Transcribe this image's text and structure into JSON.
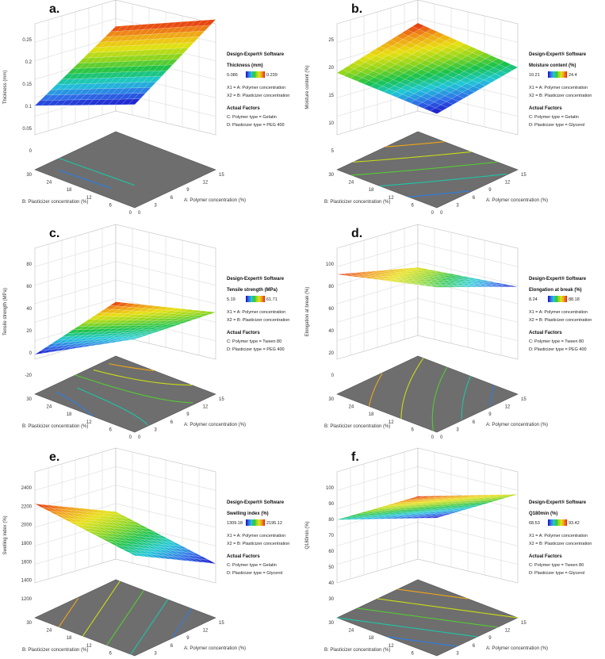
{
  "figure": {
    "software_label": "Design-Expert® Software",
    "x1_label": "X1 = A: Polymer concentration",
    "x2_label": "X2 = B: Plasticizer concentration",
    "actual_factors_label": "Actual Factors",
    "x_axis_label": "A: Polymer concentration (%)",
    "y_axis_label": "B: Plasticizer concentration (%)"
  },
  "colormap": [
    "#1a10c8",
    "#2f6fe8",
    "#1fc8d6",
    "#19c24a",
    "#8fd51c",
    "#e8e010",
    "#f09b16",
    "#e42a10"
  ],
  "chart_data": [
    {
      "panel": "a.",
      "type": "surface",
      "zlabel": "Thickness (mm)",
      "legend_title": "Thickness (mm)",
      "legend_min": "0.086",
      "legend_max": "0.239",
      "factor_c": "C: Polymer type = Gelatin",
      "factor_d": "D: Plasticizer type = PEG 400",
      "x_ticks": [
        "0",
        "3",
        "6",
        "9",
        "12",
        "15"
      ],
      "y_ticks": [
        "0",
        "6",
        "12",
        "18",
        "24",
        "30"
      ],
      "z_ticks": [
        "0",
        "0.05",
        "0.1",
        "0.15",
        "0.2",
        "0.25"
      ],
      "zlim": [
        0,
        0.25
      ],
      "corners": {
        "x0_y0": 0.086,
        "x15_y0": 0.239,
        "x0_y30": 0.095,
        "x15_y30": 0.235
      }
    },
    {
      "panel": "b.",
      "type": "surface",
      "zlabel": "Moisture content (%)",
      "legend_title": "Moisture content (%)",
      "legend_min": "10.21",
      "legend_max": "24.4",
      "factor_c": "C: Polymer type = Gelatin",
      "factor_d": "D: Plasticizer type = Glycerol",
      "x_ticks": [
        "0",
        "3",
        "6",
        "9",
        "12",
        "15"
      ],
      "y_ticks": [
        "0",
        "6",
        "12",
        "18",
        "24",
        "30"
      ],
      "z_ticks": [
        "5",
        "10",
        "15",
        "20",
        "25"
      ],
      "zlim": [
        5,
        25
      ],
      "corners": {
        "x0_y0": 10.21,
        "x15_y0": 15.5,
        "x0_y30": 18.5,
        "x15_y30": 24.4
      }
    },
    {
      "panel": "c.",
      "type": "surface",
      "zlabel": "Tensile strength (MPa)",
      "legend_title": "Tensile strength (MPa)",
      "legend_min": "5.19",
      "legend_max": "61.71",
      "factor_c": "C: Polymer type = Tween 80",
      "factor_d": "D: Plasticizer type = PEG 400",
      "x_ticks": [
        "0",
        "3",
        "6",
        "9",
        "12",
        "15"
      ],
      "y_ticks": [
        "0",
        "6",
        "12",
        "18",
        "24",
        "30"
      ],
      "z_ticks": [
        "-20",
        "0",
        "20",
        "40",
        "60",
        "80"
      ],
      "zlim": [
        -20,
        80
      ],
      "corners": {
        "x0_y0": 5.19,
        "x15_y0": 14,
        "x0_y30": -4,
        "x15_y30": 28
      }
    },
    {
      "panel": "d.",
      "type": "surface",
      "zlabel": "Elongation at break (%)",
      "legend_title": "Elongation at break (%)",
      "legend_min": "8.24",
      "legend_max": "88.18",
      "factor_c": "C: Polymer type = Tween 80",
      "factor_d": "D: Plasticizer type = PEG 400",
      "x_ticks": [
        "0",
        "3",
        "6",
        "9",
        "12",
        "15"
      ],
      "y_ticks": [
        "0",
        "6",
        "12",
        "18",
        "24",
        "30"
      ],
      "z_ticks": [
        "0",
        "20",
        "40",
        "60",
        "80",
        "100"
      ],
      "zlim": [
        0,
        100
      ],
      "corners": {
        "x0_y0": 72,
        "x15_y0": 57,
        "x0_y30": 88.18,
        "x15_y30": 79
      }
    },
    {
      "panel": "e.",
      "type": "surface",
      "zlabel": "Swelling index (%)",
      "legend_title": "Swelling index (%)",
      "legend_min": "1309.18",
      "legend_max": "2195.12",
      "factor_c": "C: Polymer type = Gelatin",
      "factor_d": "D: Plasticizer type = Glycerol",
      "x_ticks": [
        "0",
        "3",
        "6",
        "9",
        "12",
        "15"
      ],
      "y_ticks": [
        "0",
        "6",
        "12",
        "18",
        "24",
        "30"
      ],
      "z_ticks": [
        "1200",
        "1400",
        "1600",
        "1800",
        "2000",
        "2200",
        "2400"
      ],
      "zlim": [
        1200,
        2400
      ],
      "corners": {
        "x0_y0": 1580,
        "x15_y0": 1309.18,
        "x0_y30": 2195.12,
        "x15_y30": 1925
      }
    },
    {
      "panel": "f.",
      "type": "surface",
      "zlabel": "Q180min (%)",
      "legend_title": "Q180min (%)",
      "legend_min": "68.53",
      "legend_max": "93.42",
      "factor_c": "C: Polymer type = Tween 80",
      "factor_d": "D: Plasticizer type = Glycerol",
      "x_ticks": [
        "0",
        "3",
        "6",
        "9",
        "12",
        "15"
      ],
      "y_ticks": [
        "0",
        "6",
        "12",
        "18",
        "24",
        "30"
      ],
      "z_ticks": [
        "30",
        "40",
        "50",
        "60",
        "70",
        "80",
        "90",
        "100"
      ],
      "zlim": [
        30,
        100
      ],
      "corners": {
        "x0_y0": 76,
        "x15_y0": 80,
        "x0_y30": 78,
        "x15_y30": 82
      }
    }
  ]
}
